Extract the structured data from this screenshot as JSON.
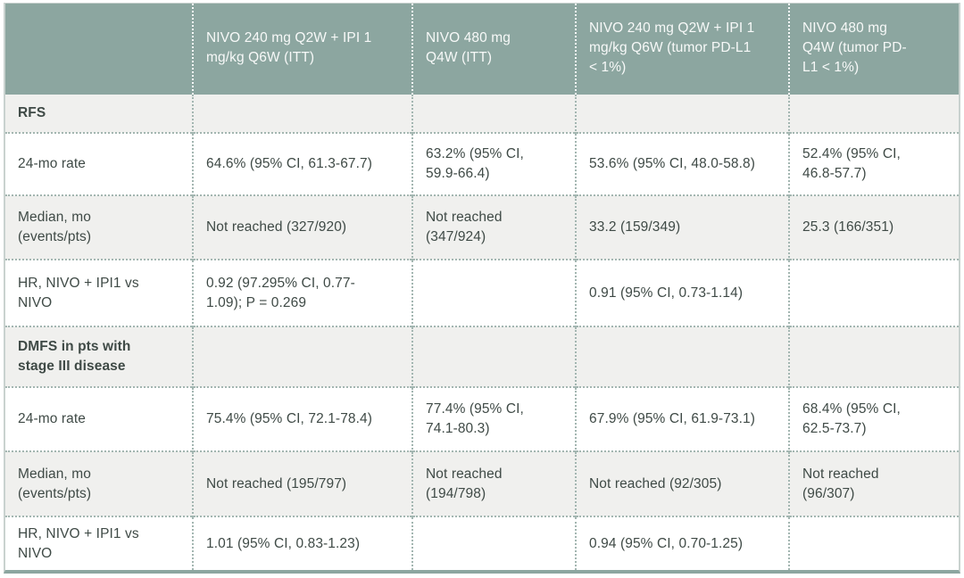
{
  "colors": {
    "header_bg": "#8CA6A0",
    "header_text": "#F7F9F8",
    "shaded_row_bg": "#F0F0EE",
    "body_text": "#3F4A46",
    "divider": "#A3B6B1",
    "outer_border": "#C9D2CF"
  },
  "table": {
    "columns": [
      "",
      "NIVO 240 mg Q2W + IPI 1\nmg/kg Q6W (ITT)",
      "NIVO 480 mg\nQ4W (ITT)",
      "NIVO 240 mg Q2W + IPI 1\nmg/kg Q6W (tumor PD-L1\n< 1%)",
      "NIVO 480 mg\nQ4W (tumor PD-\nL1 < 1%)"
    ],
    "rows": [
      {
        "label": "RFS",
        "section": true,
        "cells": [
          "",
          "",
          "",
          ""
        ]
      },
      {
        "label": "24-mo rate",
        "cells": [
          "64.6% (95% CI, 61.3-67.7)",
          "63.2% (95% CI,\n59.9-66.4)",
          "53.6% (95% CI, 48.0-58.8)",
          "52.4% (95% CI,\n46.8-57.7)"
        ]
      },
      {
        "label": "Median, mo\n(events/pts)",
        "cells": [
          "Not reached (327/920)",
          "Not reached\n(347/924)",
          "33.2 (159/349)",
          "25.3 (166/351)"
        ]
      },
      {
        "label": "HR, NIVO + IPI1 vs\nNIVO",
        "cells": [
          "0.92 (97.295% CI, 0.77-\n1.09); P = 0.269",
          "",
          "0.91 (95% CI, 0.73-1.14)",
          ""
        ]
      },
      {
        "label": "DMFS in pts with\nstage III disease",
        "section": true,
        "cells": [
          "",
          "",
          "",
          ""
        ]
      },
      {
        "label": "24-mo rate",
        "cells": [
          "75.4% (95% CI, 72.1-78.4)",
          "77.4% (95% CI,\n74.1-80.3)",
          "67.9% (95% CI, 61.9-73.1)",
          "68.4% (95% CI,\n62.5-73.7)"
        ]
      },
      {
        "label": "Median, mo\n(events/pts)",
        "cells": [
          "Not reached (195/797)",
          "Not reached\n(194/798)",
          "Not reached (92/305)",
          "Not reached\n(96/307)"
        ]
      },
      {
        "label": "HR, NIVO + IPI1 vs\nNIVO",
        "cells": [
          "1.01 (95% CI, 0.83-1.23)",
          "",
          "0.94 (95% CI, 0.70-1.25)",
          ""
        ]
      }
    ]
  }
}
